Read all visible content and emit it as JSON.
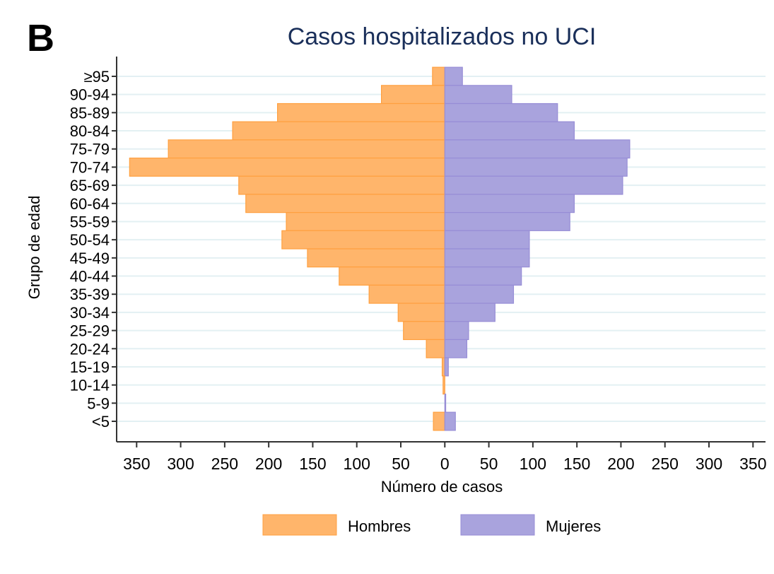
{
  "panel_label": "B",
  "chart_data": {
    "type": "bar",
    "orientation": "horizontal-population-pyramid",
    "title": "Casos hospitalizados no UCI",
    "xlabel": "Número de casos",
    "ylabel": "Grupo de edad",
    "categories": [
      "≥95",
      "90-94",
      "85-89",
      "80-84",
      "75-79",
      "70-74",
      "65-69",
      "60-64",
      "55-59",
      "50-54",
      "45-49",
      "40-44",
      "35-39",
      "30-34",
      "25-29",
      "20-24",
      "15-19",
      "10-14",
      "5-9",
      "<5"
    ],
    "series": [
      {
        "name": "Hombres",
        "color": "#FFB56B",
        "side": "left",
        "values": [
          14,
          72,
          190,
          241,
          314,
          358,
          234,
          226,
          180,
          185,
          156,
          120,
          86,
          53,
          47,
          21,
          3,
          2,
          0,
          13
        ]
      },
      {
        "name": "Mujeres",
        "color": "#A9A3DD",
        "side": "right",
        "values": [
          20,
          76,
          128,
          147,
          210,
          207,
          202,
          147,
          142,
          96,
          96,
          87,
          78,
          57,
          27,
          25,
          4,
          0,
          1,
          12
        ]
      }
    ],
    "xlim": [
      -350,
      350
    ],
    "xticks": [
      -350,
      -300,
      -250,
      -200,
      -150,
      -100,
      -50,
      0,
      50,
      100,
      150,
      200,
      250,
      300,
      350
    ],
    "xtick_labels": [
      "350",
      "300",
      "250",
      "200",
      "150",
      "100",
      "50",
      "0",
      "50",
      "100",
      "150",
      "200",
      "250",
      "300",
      "350"
    ],
    "grid": true,
    "legend_position": "bottom",
    "colors": {
      "title": "#1a2f5a",
      "grid": "#e3f0f3",
      "axis": "#333333"
    }
  }
}
